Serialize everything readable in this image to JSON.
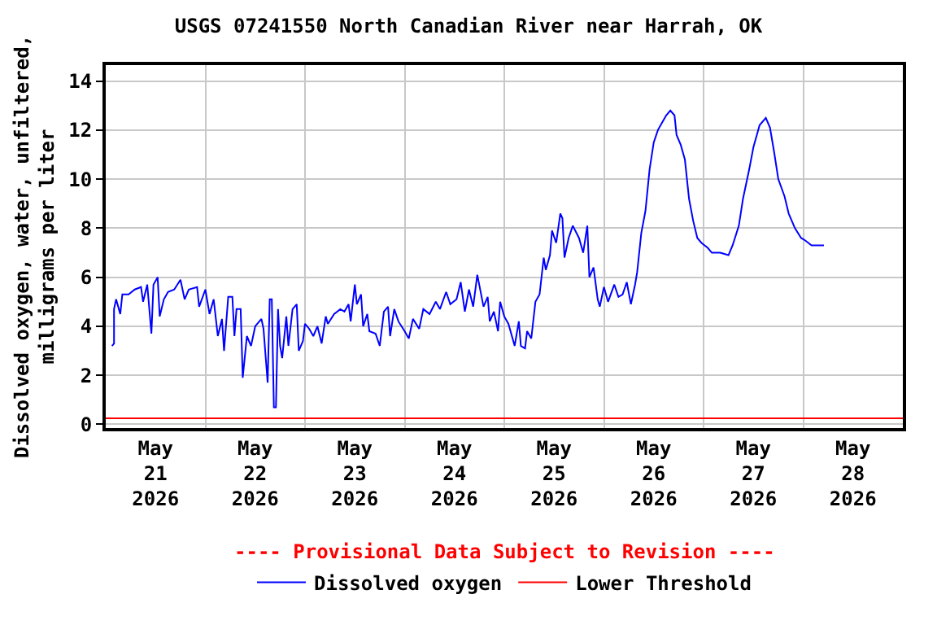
{
  "chart_data": {
    "type": "line",
    "title": "USGS 07241550 North Canadian River near Harrah, OK",
    "ylabel": "Dissolved oxygen, water, unfiltered, milligrams per liter",
    "annotations": [
      "---- Provisional Data Subject to Revision ----"
    ],
    "xlim": [
      "2026-05-21",
      "2026-05-29"
    ],
    "xticks": [
      {
        "value": "2026-05-21T12:00",
        "label": "May 21 2026"
      },
      {
        "value": "2026-05-22T12:00",
        "label": "May 22 2026"
      },
      {
        "value": "2026-05-23T12:00",
        "label": "May 23 2026"
      },
      {
        "value": "2026-05-24T12:00",
        "label": "May 24 2026"
      },
      {
        "value": "2026-05-25T12:00",
        "label": "May 25 2026"
      },
      {
        "value": "2026-05-26T12:00",
        "label": "May 26 2026"
      },
      {
        "value": "2026-05-27T12:00",
        "label": "May 27 2026"
      },
      {
        "value": "2026-05-28T12:00",
        "label": "May 28 2026"
      },
      {
        "value": "2026-05-22",
        "label": null
      },
      {
        "value": "2026-05-23",
        "label": null
      },
      {
        "value": "2026-05-24",
        "label": null
      },
      {
        "value": "2026-05-25",
        "label": null
      },
      {
        "value": "2026-05-26",
        "label": null
      },
      {
        "value": "2026-05-27",
        "label": null
      },
      {
        "value": "2026-05-28",
        "label": null
      }
    ],
    "ylim": [
      -0.15,
      14.65
    ],
    "yticks": [
      0,
      2,
      4,
      6,
      8,
      10,
      12,
      14
    ],
    "grid": true,
    "legend": "bottom",
    "line_style": "solid",
    "ref_lines": [
      {
        "axis": "y",
        "value": 0.25,
        "label": "Lower Threshold",
        "color": "#ff0000"
      }
    ],
    "series": [
      {
        "name": "Dissolved oxygen",
        "color": "#0000ff",
        "x": [
          "2026-05-21T01:30",
          "2026-05-21T02:00",
          "2026-05-21T02:00",
          "2026-05-21T02:30",
          "2026-05-21T03:30",
          "2026-05-21T04:00",
          "2026-05-21T05:30",
          "2026-05-21T07:00",
          "2026-05-21T08:30",
          "2026-05-21T09:00",
          "2026-05-21T10:00",
          "2026-05-21T11:00",
          "2026-05-21T11:30",
          "2026-05-21T12:30",
          "2026-05-21T13:00",
          "2026-05-21T14:00",
          "2026-05-21T15:00",
          "2026-05-21T16:30",
          "2026-05-21T18:00",
          "2026-05-21T19:00",
          "2026-05-21T20:00",
          "2026-05-21T22:00",
          "2026-05-21T22:30",
          "2026-05-22T00:00",
          "2026-05-22T01:00",
          "2026-05-22T02:00",
          "2026-05-22T03:00",
          "2026-05-22T04:00",
          "2026-05-22T04:30",
          "2026-05-22T05:30",
          "2026-05-22T06:30",
          "2026-05-22T07:00",
          "2026-05-22T07:30",
          "2026-05-22T08:30",
          "2026-05-22T09:00",
          "2026-05-22T10:00",
          "2026-05-22T11:00",
          "2026-05-22T12:00",
          "2026-05-22T13:30",
          "2026-05-22T14:00",
          "2026-05-22T15:00",
          "2026-05-22T15:30",
          "2026-05-22T16:00",
          "2026-05-22T16:30",
          "2026-05-22T17:00",
          "2026-05-22T17:30",
          "2026-05-22T18:00",
          "2026-05-22T18:30",
          "2026-05-22T19:30",
          "2026-05-22T20:00",
          "2026-05-22T21:00",
          "2026-05-22T22:00",
          "2026-05-22T22:30",
          "2026-05-22T23:30",
          "2026-05-23T00:00",
          "2026-05-23T01:00",
          "2026-05-23T02:00",
          "2026-05-23T03:00",
          "2026-05-23T04:00",
          "2026-05-23T05:00",
          "2026-05-23T05:30",
          "2026-05-23T07:00",
          "2026-05-23T08:30",
          "2026-05-23T09:30",
          "2026-05-23T10:30",
          "2026-05-23T11:00",
          "2026-05-23T12:00",
          "2026-05-23T12:30",
          "2026-05-23T13:30",
          "2026-05-23T14:00",
          "2026-05-23T15:00",
          "2026-05-23T15:30",
          "2026-05-23T17:00",
          "2026-05-23T18:00",
          "2026-05-23T19:00",
          "2026-05-23T20:00",
          "2026-05-23T20:30",
          "2026-05-23T21:30",
          "2026-05-23T22:30",
          "2026-05-24T00:00",
          "2026-05-24T01:00",
          "2026-05-24T02:00",
          "2026-05-24T03:30",
          "2026-05-24T04:30",
          "2026-05-24T06:00",
          "2026-05-24T07:30",
          "2026-05-24T08:30",
          "2026-05-24T10:00",
          "2026-05-24T11:00",
          "2026-05-24T12:30",
          "2026-05-24T13:30",
          "2026-05-24T14:30",
          "2026-05-24T15:30",
          "2026-05-24T16:30",
          "2026-05-24T17:30",
          "2026-05-24T19:00",
          "2026-05-24T20:00",
          "2026-05-24T20:30",
          "2026-05-24T21:30",
          "2026-05-24T22:30",
          "2026-05-24T23:00",
          "2026-05-25T00:00",
          "2026-05-25T01:00",
          "2026-05-25T02:30",
          "2026-05-25T03:30",
          "2026-05-25T04:00",
          "2026-05-25T05:00",
          "2026-05-25T05:30",
          "2026-05-25T06:30",
          "2026-05-25T07:30",
          "2026-05-25T08:30",
          "2026-05-25T09:30",
          "2026-05-25T10:00",
          "2026-05-25T11:00",
          "2026-05-25T11:30",
          "2026-05-25T12:30",
          "2026-05-25T13:30",
          "2026-05-25T14:00",
          "2026-05-25T14:30",
          "2026-05-25T15:30",
          "2026-05-25T16:30",
          "2026-05-25T18:00",
          "2026-05-25T19:00",
          "2026-05-25T20:00",
          "2026-05-25T20:30",
          "2026-05-25T21:30",
          "2026-05-25T22:30",
          "2026-05-25T23:00",
          "2026-05-26T00:00",
          "2026-05-26T01:00",
          "2026-05-26T02:30",
          "2026-05-26T03:30",
          "2026-05-26T04:30",
          "2026-05-26T05:30",
          "2026-05-26T06:30",
          "2026-05-26T07:30",
          "2026-05-26T08:00",
          "2026-05-26T09:00",
          "2026-05-26T10:00",
          "2026-05-26T11:00",
          "2026-05-26T12:00",
          "2026-05-26T13:00",
          "2026-05-26T14:00",
          "2026-05-26T15:00",
          "2026-05-26T16:00",
          "2026-05-26T17:00",
          "2026-05-26T17:30",
          "2026-05-26T18:30",
          "2026-05-26T19:30",
          "2026-05-26T20:30",
          "2026-05-26T21:30",
          "2026-05-26T22:30",
          "2026-05-26T23:30",
          "2026-05-27T01:00",
          "2026-05-27T02:00",
          "2026-05-27T04:00",
          "2026-05-27T06:00",
          "2026-05-27T07:00",
          "2026-05-27T08:30",
          "2026-05-27T09:30",
          "2026-05-27T11:00",
          "2026-05-27T12:00",
          "2026-05-27T13:30",
          "2026-05-27T15:00",
          "2026-05-27T16:00",
          "2026-05-27T17:00",
          "2026-05-27T18:00",
          "2026-05-27T19:30",
          "2026-05-27T20:30",
          "2026-05-27T22:00",
          "2026-05-27T23:30",
          "2026-05-28T00:30",
          "2026-05-28T02:00",
          "2026-05-28T03:30",
          "2026-05-28T05:00"
        ],
        "values": [
          3.2,
          3.3,
          4.7,
          5.1,
          4.5,
          5.3,
          5.3,
          5.5,
          5.6,
          5.0,
          5.7,
          3.7,
          5.7,
          6.0,
          4.4,
          5.1,
          5.4,
          5.5,
          5.9,
          5.1,
          5.5,
          5.6,
          4.8,
          5.5,
          4.5,
          5.1,
          3.6,
          4.3,
          3.0,
          5.2,
          5.2,
          3.6,
          4.7,
          4.7,
          1.9,
          3.6,
          3.2,
          4.0,
          4.3,
          3.9,
          1.7,
          5.1,
          5.1,
          0.7,
          0.7,
          4.7,
          3.2,
          2.7,
          4.4,
          3.2,
          4.7,
          4.9,
          3.0,
          3.4,
          4.1,
          3.9,
          3.6,
          4.0,
          3.3,
          4.4,
          4.1,
          4.5,
          4.7,
          4.6,
          4.9,
          4.2,
          5.7,
          4.9,
          5.3,
          4.0,
          4.5,
          3.8,
          3.7,
          3.2,
          4.6,
          4.8,
          3.6,
          4.7,
          4.2,
          3.8,
          3.5,
          4.3,
          3.9,
          4.7,
          4.5,
          5.0,
          4.7,
          5.4,
          4.9,
          5.1,
          5.8,
          4.6,
          5.5,
          4.8,
          6.1,
          4.8,
          5.2,
          4.2,
          4.6,
          3.8,
          5.0,
          4.4,
          4.1,
          3.2,
          4.2,
          3.2,
          3.1,
          3.8,
          3.5,
          5.0,
          5.3,
          6.8,
          6.3,
          6.9,
          7.9,
          7.4,
          8.6,
          8.4,
          6.8,
          7.6,
          8.1,
          7.6,
          7.0,
          8.1,
          6.0,
          6.4,
          5.1,
          4.8,
          5.6,
          5.0,
          5.7,
          5.2,
          5.3,
          5.8,
          4.9,
          5.7,
          6.2,
          7.8,
          8.7,
          10.4,
          11.5,
          12.0,
          12.3,
          12.6,
          12.8,
          12.6,
          11.8,
          11.4,
          10.8,
          9.2,
          8.3,
          7.6,
          7.4,
          7.2,
          7.0,
          7.0,
          6.9,
          7.3,
          8.1,
          9.2,
          10.4,
          11.3,
          12.2,
          12.5,
          12.1,
          11.1,
          10.0,
          9.3,
          8.6,
          8.0,
          7.6,
          7.5,
          7.3,
          7.3,
          7.3
        ]
      }
    ]
  }
}
